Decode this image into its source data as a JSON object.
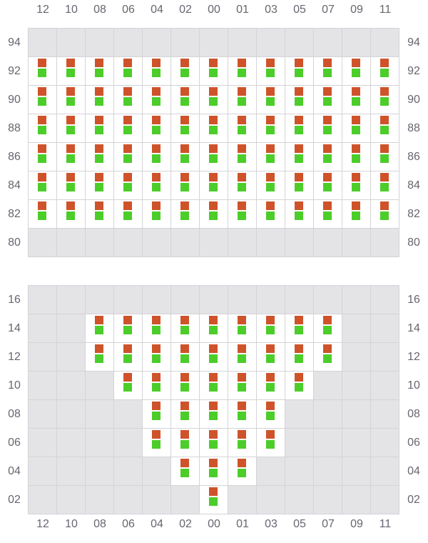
{
  "columns": [
    "12",
    "10",
    "08",
    "06",
    "04",
    "02",
    "00",
    "01",
    "03",
    "05",
    "07",
    "09",
    "11"
  ],
  "colors": {
    "top_marker": "#cf532a",
    "bottom_marker": "#4ccd2a",
    "empty_cell": "#e4e4e7",
    "active_cell": "#ffffff",
    "border": "#d4d4d8"
  },
  "sections": [
    {
      "rows": [
        {
          "label": "94",
          "active": []
        },
        {
          "label": "92",
          "active": [
            "12",
            "10",
            "08",
            "06",
            "04",
            "02",
            "00",
            "01",
            "03",
            "05",
            "07",
            "09",
            "11"
          ]
        },
        {
          "label": "90",
          "active": [
            "12",
            "10",
            "08",
            "06",
            "04",
            "02",
            "00",
            "01",
            "03",
            "05",
            "07",
            "09",
            "11"
          ]
        },
        {
          "label": "88",
          "active": [
            "12",
            "10",
            "08",
            "06",
            "04",
            "02",
            "00",
            "01",
            "03",
            "05",
            "07",
            "09",
            "11"
          ]
        },
        {
          "label": "86",
          "active": [
            "12",
            "10",
            "08",
            "06",
            "04",
            "02",
            "00",
            "01",
            "03",
            "05",
            "07",
            "09",
            "11"
          ]
        },
        {
          "label": "84",
          "active": [
            "12",
            "10",
            "08",
            "06",
            "04",
            "02",
            "00",
            "01",
            "03",
            "05",
            "07",
            "09",
            "11"
          ]
        },
        {
          "label": "82",
          "active": [
            "12",
            "10",
            "08",
            "06",
            "04",
            "02",
            "00",
            "01",
            "03",
            "05",
            "07",
            "09",
            "11"
          ]
        },
        {
          "label": "80",
          "active": []
        }
      ]
    },
    {
      "rows": [
        {
          "label": "16",
          "active": []
        },
        {
          "label": "14",
          "active": [
            "08",
            "06",
            "04",
            "02",
            "00",
            "01",
            "03",
            "05",
            "07"
          ]
        },
        {
          "label": "12",
          "active": [
            "08",
            "06",
            "04",
            "02",
            "00",
            "01",
            "03",
            "05",
            "07"
          ]
        },
        {
          "label": "10",
          "active": [
            "06",
            "04",
            "02",
            "00",
            "01",
            "03",
            "05"
          ]
        },
        {
          "label": "08",
          "active": [
            "04",
            "02",
            "00",
            "01",
            "03"
          ]
        },
        {
          "label": "06",
          "active": [
            "04",
            "02",
            "00",
            "01",
            "03"
          ]
        },
        {
          "label": "04",
          "active": [
            "02",
            "00",
            "01"
          ]
        },
        {
          "label": "02",
          "active": [
            "00"
          ]
        }
      ]
    }
  ]
}
